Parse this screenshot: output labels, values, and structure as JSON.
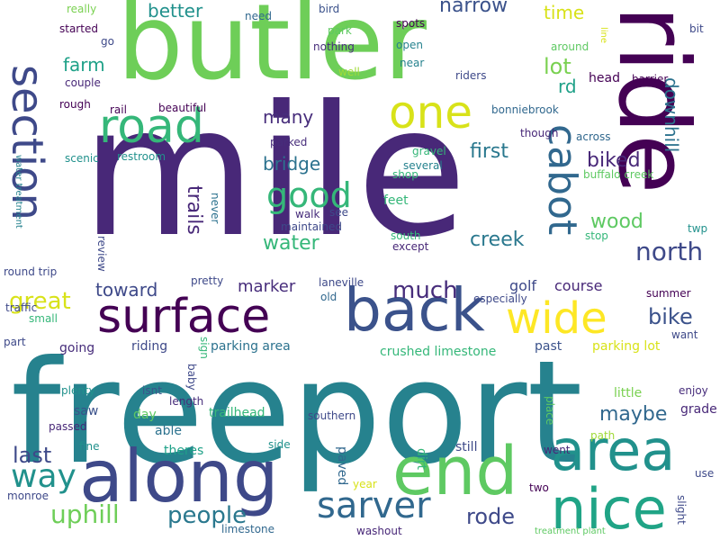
{
  "words": [
    {
      "text": "mile",
      "color": "#482878"
    },
    {
      "text": "freeport",
      "color": "#26828e"
    },
    {
      "text": "butler",
      "color": "#6ece58"
    },
    {
      "text": "ride",
      "color": "#440154"
    },
    {
      "text": "along",
      "color": "#3e4989"
    },
    {
      "text": "back",
      "color": "#3b528b"
    },
    {
      "text": "surface",
      "color": "#440154"
    },
    {
      "text": "end",
      "color": "#5ec962"
    },
    {
      "text": "area",
      "color": "#21918c"
    },
    {
      "text": "nice",
      "color": "#20a486"
    },
    {
      "text": "section",
      "color": "#3e4989"
    },
    {
      "text": "road",
      "color": "#35b779"
    },
    {
      "text": "one",
      "color": "#d8e219"
    },
    {
      "text": "wide",
      "color": "#fde725"
    },
    {
      "text": "cabot",
      "color": "#31688e"
    },
    {
      "text": "sarver",
      "color": "#31688e"
    },
    {
      "text": "good",
      "color": "#35b779"
    },
    {
      "text": "way",
      "color": "#21918c"
    },
    {
      "text": "uphill",
      "color": "#6ece58"
    },
    {
      "text": "people",
      "color": "#2a788e"
    },
    {
      "text": "rode",
      "color": "#3e4989"
    },
    {
      "text": "much",
      "color": "#472d7b"
    },
    {
      "text": "water",
      "color": "#35b779"
    },
    {
      "text": "creek",
      "color": "#2a788e"
    },
    {
      "text": "north",
      "color": "#3e4989"
    },
    {
      "text": "trails",
      "color": "#482878"
    },
    {
      "text": "great",
      "color": "#d8e219"
    },
    {
      "text": "last",
      "color": "#3e4989"
    },
    {
      "text": "bike",
      "color": "#3b528b"
    },
    {
      "text": "maybe",
      "color": "#31688e"
    },
    {
      "text": "wood",
      "color": "#5ec962"
    },
    {
      "text": "narrow",
      "color": "#3b528b"
    },
    {
      "text": "lot",
      "color": "#7ad151"
    },
    {
      "text": "farm",
      "color": "#1fa188"
    },
    {
      "text": "first",
      "color": "#2a788e"
    },
    {
      "text": "many",
      "color": "#472d7b"
    },
    {
      "text": "bridge",
      "color": "#2c728e"
    },
    {
      "text": "biked",
      "color": "#482878"
    },
    {
      "text": "downhill",
      "color": "#2c728e"
    },
    {
      "text": "toward",
      "color": "#3e4989"
    },
    {
      "text": "marker",
      "color": "#472d7b"
    },
    {
      "text": "time",
      "color": "#d8e219"
    },
    {
      "text": "better",
      "color": "#21918c"
    },
    {
      "text": "rd",
      "color": "#1fa188"
    },
    {
      "text": "golf",
      "color": "#3e4989"
    },
    {
      "text": "course",
      "color": "#482878"
    },
    {
      "text": "riding",
      "color": "#3e4989"
    },
    {
      "text": "parking area",
      "color": "#2c728e"
    },
    {
      "text": "crushed limestone",
      "color": "#35b779"
    },
    {
      "text": "saw",
      "color": "#3b528b"
    },
    {
      "text": "little",
      "color": "#7ad151"
    },
    {
      "text": "grade",
      "color": "#482878"
    },
    {
      "text": "theres",
      "color": "#1fa188"
    },
    {
      "text": "paved",
      "color": "#31688e"
    },
    {
      "text": "dirt",
      "color": "#35b779"
    },
    {
      "text": "still",
      "color": "#3e4989"
    },
    {
      "text": "going",
      "color": "#472d7b"
    },
    {
      "text": "trailhead",
      "color": "#35b779"
    },
    {
      "text": "day",
      "color": "#5ec962"
    },
    {
      "text": "able",
      "color": "#2c728e"
    },
    {
      "text": "fine",
      "color": "#21918c"
    },
    {
      "text": "side",
      "color": "#21918c"
    },
    {
      "text": "past",
      "color": "#3b528b"
    },
    {
      "text": "parking lot",
      "color": "#d8e219"
    },
    {
      "text": "summer",
      "color": "#440154"
    },
    {
      "text": "want",
      "color": "#3e4989"
    },
    {
      "text": "enjoy",
      "color": "#472d7b"
    },
    {
      "text": "southern",
      "color": "#3e4989"
    },
    {
      "text": "path",
      "color": "#a0da39"
    },
    {
      "text": "place",
      "color": "#5ec962"
    },
    {
      "text": "went",
      "color": "#482878"
    },
    {
      "text": "two",
      "color": "#440154"
    },
    {
      "text": "use",
      "color": "#3e4989"
    },
    {
      "text": "slight",
      "color": "#3e4989"
    },
    {
      "text": "year",
      "color": "#d8e219"
    },
    {
      "text": "washout",
      "color": "#482878"
    },
    {
      "text": "limestone",
      "color": "#31688e"
    },
    {
      "text": "treatment plant",
      "color": "#5ec962"
    },
    {
      "text": "monroe",
      "color": "#3e4989"
    },
    {
      "text": "passed",
      "color": "#482878"
    },
    {
      "text": "plenty",
      "color": "#21918c"
    },
    {
      "text": "isnt",
      "color": "#3b528b"
    },
    {
      "text": "length",
      "color": "#472d7b"
    },
    {
      "text": "baby",
      "color": "#3e4989"
    },
    {
      "text": "sign",
      "color": "#35b779"
    },
    {
      "text": "part",
      "color": "#3e4989"
    },
    {
      "text": "small",
      "color": "#35b779"
    },
    {
      "text": "traffic",
      "color": "#3e4989"
    },
    {
      "text": "round trip",
      "color": "#3e4989"
    },
    {
      "text": "review",
      "color": "#3e4989"
    },
    {
      "text": "pretty",
      "color": "#3e4989"
    },
    {
      "text": "water treatment",
      "color": "#26828e"
    },
    {
      "text": "never",
      "color": "#2c728e"
    },
    {
      "text": "scenic",
      "color": "#21918c"
    },
    {
      "text": "restroom",
      "color": "#21918c"
    },
    {
      "text": "parked",
      "color": "#472d7b"
    },
    {
      "text": "walk",
      "color": "#472d7b"
    },
    {
      "text": "see",
      "color": "#3e4989"
    },
    {
      "text": "maintained",
      "color": "#3e4989"
    },
    {
      "text": "laneville",
      "color": "#3e4989"
    },
    {
      "text": "old",
      "color": "#31688e"
    },
    {
      "text": "south",
      "color": "#35b779"
    },
    {
      "text": "except",
      "color": "#482878"
    },
    {
      "text": "especially",
      "color": "#3e4989"
    },
    {
      "text": "twp",
      "color": "#21918c"
    },
    {
      "text": "stop",
      "color": "#35b779"
    },
    {
      "text": "feet",
      "color": "#35b779"
    },
    {
      "text": "gravel",
      "color": "#35b779"
    },
    {
      "text": "several",
      "color": "#26828e"
    },
    {
      "text": "shop",
      "color": "#35b779"
    },
    {
      "text": "buffalo creek",
      "color": "#5ec962"
    },
    {
      "text": "across",
      "color": "#31688e"
    },
    {
      "text": "though",
      "color": "#482878"
    },
    {
      "text": "bonniebrook",
      "color": "#31688e"
    },
    {
      "text": "rail",
      "color": "#440154"
    },
    {
      "text": "beautiful",
      "color": "#440154"
    },
    {
      "text": "rough",
      "color": "#440154"
    },
    {
      "text": "couple",
      "color": "#482878"
    },
    {
      "text": "started",
      "color": "#440154"
    },
    {
      "text": "go",
      "color": "#3e4989"
    },
    {
      "text": "really",
      "color": "#7ad151"
    },
    {
      "text": "need",
      "color": "#31688e"
    },
    {
      "text": "bird",
      "color": "#3b528b"
    },
    {
      "text": "park",
      "color": "#5ec962"
    },
    {
      "text": "nothing",
      "color": "#472d7b"
    },
    {
      "text": "well",
      "color": "#a0da39"
    },
    {
      "text": "spots",
      "color": "#440154"
    },
    {
      "text": "open",
      "color": "#26828e"
    },
    {
      "text": "near",
      "color": "#26828e"
    },
    {
      "text": "riders",
      "color": "#3e4989"
    },
    {
      "text": "around",
      "color": "#5ec962"
    },
    {
      "text": "line",
      "color": "#d8e219"
    },
    {
      "text": "bit",
      "color": "#3e4989"
    },
    {
      "text": "head",
      "color": "#440154"
    },
    {
      "text": "barrier",
      "color": "#440154"
    }
  ]
}
